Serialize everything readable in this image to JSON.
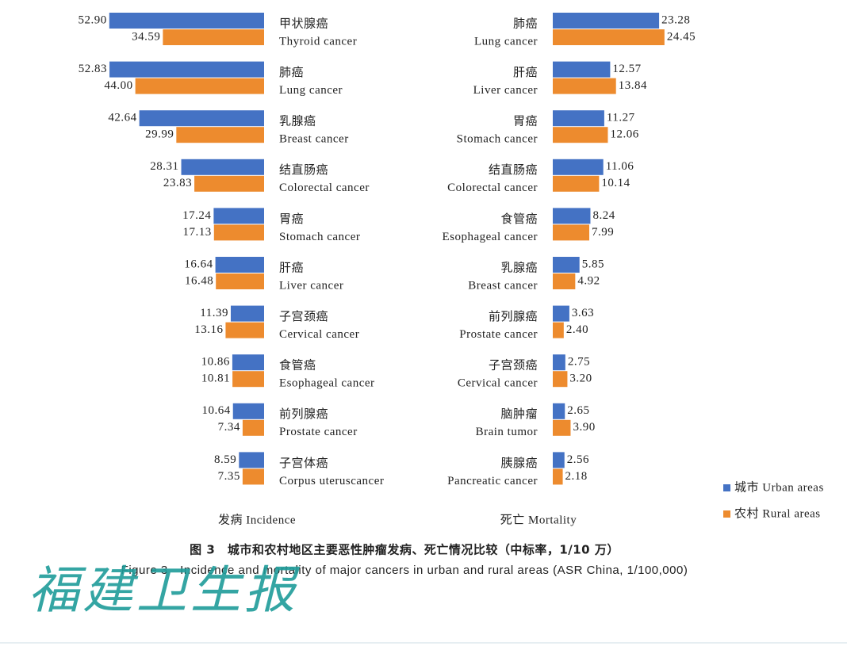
{
  "chart_data": {
    "type": "bar",
    "orientation": "horizontal",
    "legend": "lower right",
    "series": [
      {
        "name": "城市 Urban areas",
        "color": "#4472c4"
      },
      {
        "name": "农村 Rural areas",
        "color": "#ed8b2e"
      }
    ],
    "panels": [
      {
        "xlabel": "发病 Incidence",
        "direction": "left",
        "categories": [
          [
            "甲状腺癌",
            "Thyroid cancer"
          ],
          [
            "肺癌",
            "Lung cancer"
          ],
          [
            "乳腺癌",
            "Breast cancer"
          ],
          [
            "结直肠癌",
            "Colorectal cancer"
          ],
          [
            "胃癌",
            "Stomach cancer"
          ],
          [
            "肝癌",
            "Liver cancer"
          ],
          [
            "子宫颈癌",
            "Cervical cancer"
          ],
          [
            "食管癌",
            "Esophageal cancer"
          ],
          [
            "前列腺癌",
            "Prostate cancer"
          ],
          [
            "子宫体癌",
            "Corpus uteruscancer"
          ]
        ],
        "series_values": [
          [
            52.9,
            52.83,
            42.64,
            28.31,
            17.24,
            16.64,
            11.39,
            10.86,
            10.64,
            8.59
          ],
          [
            34.59,
            44,
            29.99,
            23.83,
            17.13,
            16.48,
            13.16,
            10.81,
            7.34,
            7.35
          ]
        ],
        "value_labels": [
          [
            "52.90",
            "52.83",
            "42.64",
            "28.31",
            "17.24",
            "16.64",
            "11.39",
            "10.86",
            "10.64",
            "8.59"
          ],
          [
            "34.59",
            "44.00",
            "29.99",
            "23.83",
            "17.13",
            "16.48",
            "13.16",
            "10.81",
            "7.34",
            "7.35"
          ]
        ]
      },
      {
        "xlabel": "死亡 Mortality",
        "direction": "right",
        "categories": [
          [
            "肺癌",
            "Lung cancer"
          ],
          [
            "肝癌",
            "Liver cancer"
          ],
          [
            "胃癌",
            "Stomach cancer"
          ],
          [
            "结直肠癌",
            "Colorectal cancer"
          ],
          [
            "食管癌",
            "Esophageal cancer"
          ],
          [
            "乳腺癌",
            "Breast cancer"
          ],
          [
            "前列腺癌",
            "Prostate cancer"
          ],
          [
            "子宫颈癌",
            "Cervical cancer"
          ],
          [
            "脑肿瘤",
            "Brain tumor"
          ],
          [
            "胰腺癌",
            "Pancreatic cancer"
          ]
        ],
        "series_values": [
          [
            23.28,
            12.57,
            11.27,
            11.06,
            8.24,
            5.85,
            3.63,
            2.75,
            2.65,
            2.56
          ],
          [
            24.45,
            13.84,
            12.06,
            10.14,
            7.99,
            4.92,
            2.4,
            3.2,
            3.9,
            2.18
          ]
        ],
        "value_labels": [
          [
            "23.28",
            "12.57",
            "11.27",
            "11.06",
            "8.24",
            "5.85",
            "3.63",
            "2.75",
            "2.65",
            "2.56"
          ],
          [
            "24.45",
            "13.84",
            "12.06",
            "10.14",
            "7.99",
            "4.92",
            "2.40",
            "3.20",
            "3.90",
            "2.18"
          ]
        ]
      }
    ],
    "caption_zh": "图 3　城市和农村地区主要恶性肿瘤发病、死亡情况比较（中标率，1/10 万）",
    "caption_en": "Figure 3　Incidence and mortality of major cancers in urban and rural areas (ASR China, 1/100,000)"
  },
  "watermark": "福建卫生报"
}
